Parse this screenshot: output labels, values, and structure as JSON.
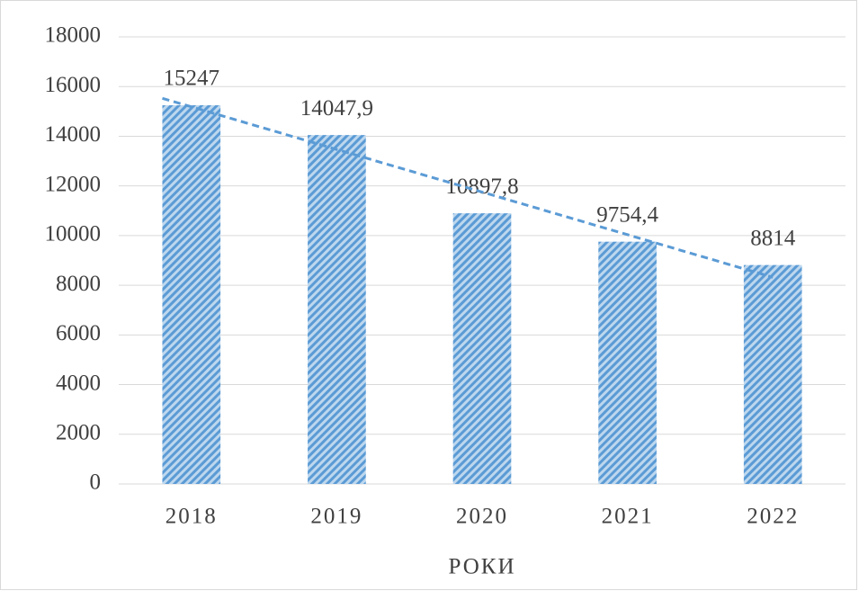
{
  "chart_data": {
    "type": "bar",
    "categories": [
      "2018",
      "2019",
      "2020",
      "2021",
      "2022"
    ],
    "values": [
      15247,
      14047.9,
      10897.8,
      9754.4,
      8814
    ],
    "value_labels": [
      "15247",
      "14047,9",
      "10897,8",
      "9754,4",
      "8814"
    ],
    "color": "#5b9bd5",
    "x_label": "РОКИ",
    "ylim": [
      0,
      18000
    ],
    "yticks": [
      0,
      2000,
      4000,
      6000,
      8000,
      10000,
      12000,
      14000,
      16000,
      18000
    ],
    "grid": true,
    "trendline": "linear"
  }
}
